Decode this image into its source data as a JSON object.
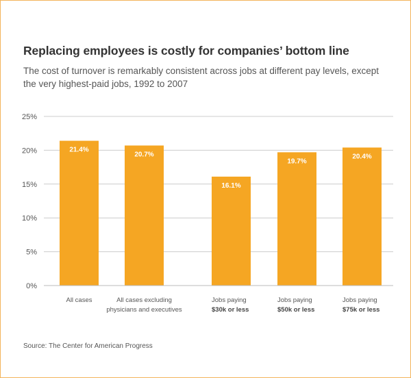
{
  "chart_data": {
    "type": "bar",
    "title": "Replacing employees is costly for companies’ bottom line",
    "subtitle": "The cost of turnover is remarkably consistent across jobs at different pay levels, except the very highest-paid jobs, 1992 to 2007",
    "categories": [
      {
        "lines": [
          "All cases"
        ],
        "bold_lines": []
      },
      {
        "lines": [
          "All cases excluding",
          "physicians and executives"
        ],
        "bold_lines": []
      },
      {
        "lines": [
          "Jobs paying",
          "$30k or less"
        ],
        "bold_lines": [
          1
        ]
      },
      {
        "lines": [
          "Jobs paying",
          "$50k or less"
        ],
        "bold_lines": [
          1
        ]
      },
      {
        "lines": [
          "Jobs paying",
          "$75k or less"
        ],
        "bold_lines": [
          1
        ]
      }
    ],
    "values": [
      21.4,
      20.7,
      16.1,
      19.7,
      20.4
    ],
    "data_labels": [
      "21.4%",
      "20.7%",
      "16.1%",
      "19.7%",
      "20.4%"
    ],
    "xlabel": "",
    "ylabel": "",
    "ylim": [
      0,
      25
    ],
    "yticks": [
      0,
      5,
      10,
      15,
      20,
      25
    ],
    "ytick_labels": [
      "0%",
      "5%",
      "10%",
      "15%",
      "20%",
      "25%"
    ],
    "grid": true,
    "legend": "none",
    "source": "Source: The Center for American Progress",
    "colors": {
      "bar": "#F5A623",
      "grid": "#cccccc",
      "frame": "#f3b45a"
    }
  }
}
